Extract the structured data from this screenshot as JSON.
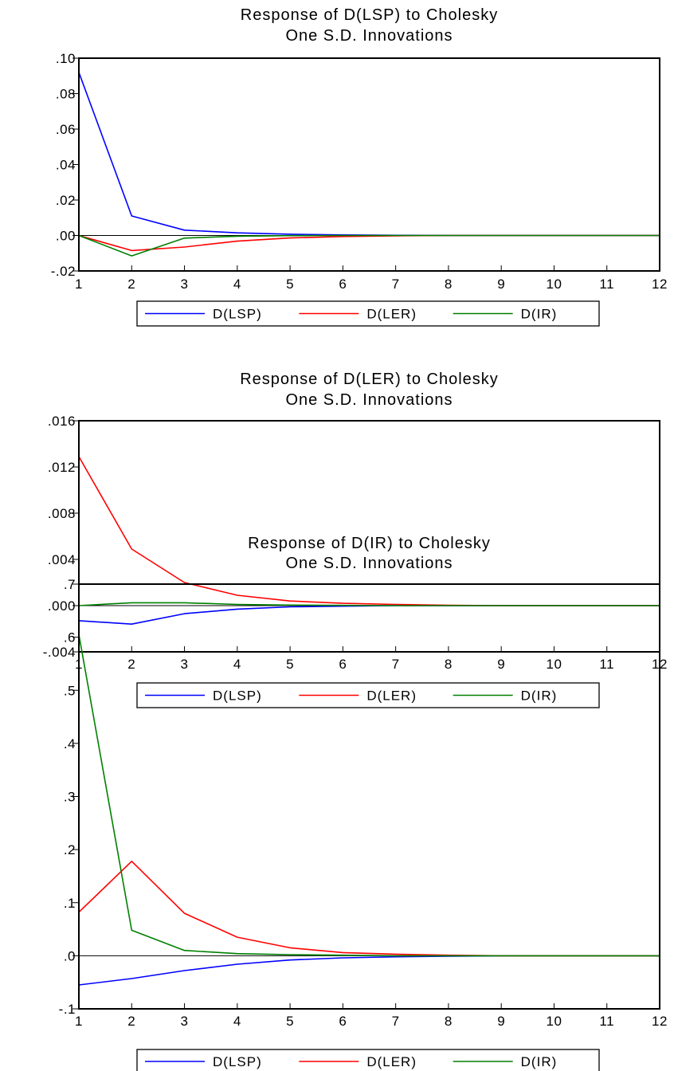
{
  "chart_data": [
    {
      "type": "line",
      "title": "Response of D(LSP) to Cholesky",
      "subtitle": "One S.D. Innovations",
      "x": [
        1,
        2,
        3,
        4,
        5,
        6,
        7,
        8,
        9,
        10,
        11,
        12
      ],
      "ylim": [
        -0.02,
        0.1
      ],
      "yticks": [
        -0.02,
        0.0,
        0.02,
        0.04,
        0.06,
        0.08,
        0.1
      ],
      "ytick_labels": [
        "-.02",
        ".00",
        ".02",
        ".04",
        ".06",
        ".08",
        ".10"
      ],
      "legend_position": "bottom",
      "grid": false,
      "series": [
        {
          "name": "D(LSP)",
          "color": "#0000ff",
          "values": [
            0.092,
            0.011,
            0.003,
            0.0015,
            0.0007,
            0.0003,
            0.0001,
            0.0,
            0.0,
            0.0,
            0.0,
            0.0
          ]
        },
        {
          "name": "D(LER)",
          "color": "#ff0000",
          "values": [
            0.0,
            -0.0085,
            -0.0065,
            -0.0032,
            -0.0014,
            -0.0006,
            -0.0002,
            0.0,
            0.0,
            0.0,
            0.0,
            0.0
          ]
        },
        {
          "name": "D(IR)",
          "color": "#008000",
          "values": [
            0.0,
            -0.0115,
            -0.0015,
            -0.0004,
            -0.0001,
            0.0,
            0.0,
            0.0,
            0.0,
            0.0,
            0.0,
            0.0
          ]
        }
      ]
    },
    {
      "type": "line",
      "title": "Response of D(LER) to Cholesky",
      "subtitle": "One S.D. Innovations",
      "x": [
        1,
        2,
        3,
        4,
        5,
        6,
        7,
        8,
        9,
        10,
        11,
        12
      ],
      "ylim": [
        -0.004,
        0.016
      ],
      "yticks": [
        -0.004,
        0.0,
        0.004,
        0.008,
        0.012,
        0.016
      ],
      "ytick_labels": [
        "-.004",
        ".000",
        ".004",
        ".008",
        ".012",
        ".016"
      ],
      "legend_position": "bottom",
      "grid": false,
      "series": [
        {
          "name": "D(LSP)",
          "color": "#0000ff",
          "values": [
            -0.0013,
            -0.0016,
            -0.0007,
            -0.0003,
            -0.0001,
            -5e-05,
            0.0,
            0.0,
            0.0,
            0.0,
            0.0,
            0.0
          ]
        },
        {
          "name": "D(LER)",
          "color": "#ff0000",
          "values": [
            0.0129,
            0.0049,
            0.002,
            0.0009,
            0.0004,
            0.0002,
            0.0001,
            3e-05,
            0.0,
            0.0,
            0.0,
            0.0
          ]
        },
        {
          "name": "D(IR)",
          "color": "#008000",
          "values": [
            0.0,
            0.00025,
            0.00025,
            0.0001,
            5e-05,
            2e-05,
            0.0,
            0.0,
            0.0,
            0.0,
            0.0,
            0.0
          ]
        }
      ]
    },
    {
      "type": "line",
      "title": "Response of D(IR) to Cholesky",
      "subtitle": "One S.D. Innovations",
      "x": [
        1,
        2,
        3,
        4,
        5,
        6,
        7,
        8,
        9,
        10,
        11,
        12
      ],
      "ylim": [
        -0.1,
        0.7
      ],
      "yticks": [
        -0.1,
        0.0,
        0.1,
        0.2,
        0.3,
        0.4,
        0.5,
        0.6,
        0.7
      ],
      "ytick_labels": [
        "-.1",
        ".0",
        ".1",
        ".2",
        ".3",
        ".4",
        ".5",
        ".6",
        ".7"
      ],
      "legend_position": "bottom",
      "grid": false,
      "series": [
        {
          "name": "D(LSP)",
          "color": "#0000ff",
          "values": [
            -0.055,
            -0.043,
            -0.028,
            -0.016,
            -0.008,
            -0.004,
            -0.002,
            -0.001,
            0.0,
            0.0,
            0.0,
            0.0
          ]
        },
        {
          "name": "D(LER)",
          "color": "#ff0000",
          "values": [
            0.082,
            0.178,
            0.08,
            0.035,
            0.015,
            0.006,
            0.003,
            0.001,
            0.0,
            0.0,
            0.0,
            0.0
          ]
        },
        {
          "name": "D(IR)",
          "color": "#008000",
          "values": [
            0.605,
            0.048,
            0.01,
            0.004,
            0.002,
            0.001,
            0.0,
            0.0,
            0.0,
            0.0,
            0.0,
            0.0
          ]
        }
      ]
    }
  ]
}
